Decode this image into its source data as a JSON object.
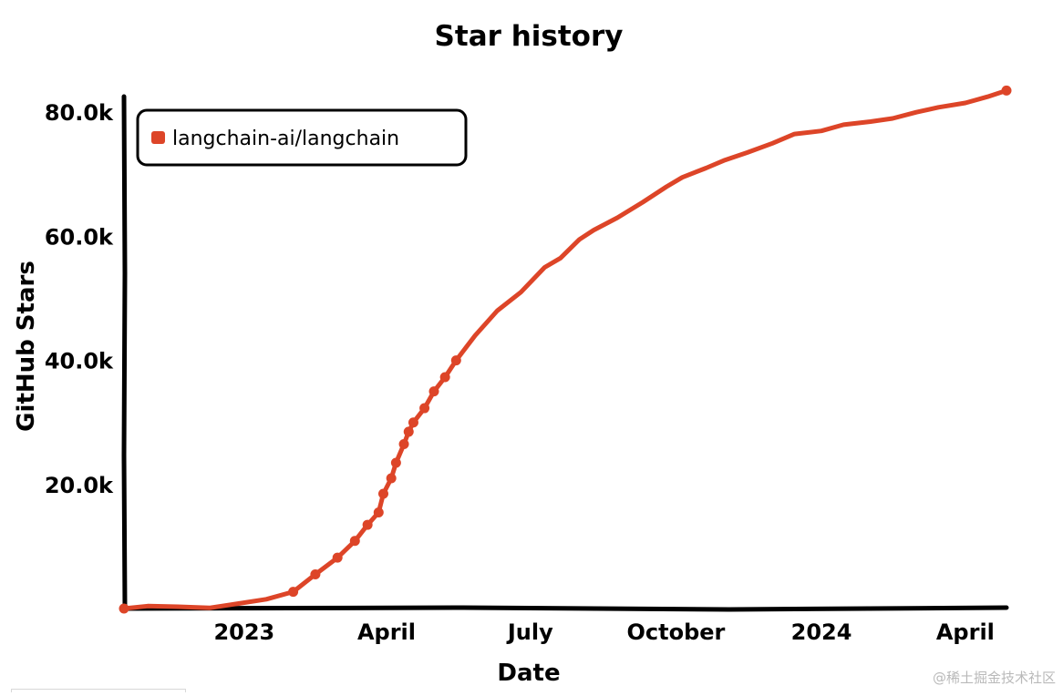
{
  "chart_data": {
    "type": "line",
    "title": "Star history",
    "xlabel": "Date",
    "ylabel": "GitHub Stars",
    "x_ticks": [
      {
        "date": "2023-01-01",
        "label": "2023"
      },
      {
        "date": "2023-04-01",
        "label": "April"
      },
      {
        "date": "2023-07-01",
        "label": "July"
      },
      {
        "date": "2023-10-01",
        "label": "October"
      },
      {
        "date": "2024-01-01",
        "label": "2024"
      },
      {
        "date": "2024-04-01",
        "label": "April"
      }
    ],
    "y_ticks": [
      {
        "value": 20000,
        "label": "20.0k"
      },
      {
        "value": 40000,
        "label": "40.0k"
      },
      {
        "value": 60000,
        "label": "60.0k"
      },
      {
        "value": 80000,
        "label": "80.0k"
      }
    ],
    "xlim": [
      "2022-10-17",
      "2024-04-27"
    ],
    "ylim": [
      0,
      84000
    ],
    "legend_position": "top-left",
    "grid": false,
    "series": [
      {
        "name": "langchain-ai/langchain",
        "color": "#dd4528",
        "x": [
          "2022-10-17",
          "2022-11-01",
          "2022-11-20",
          "2022-12-10",
          "2022-12-28",
          "2023-01-15",
          "2023-02-01",
          "2023-02-15",
          "2023-03-01",
          "2023-03-12",
          "2023-03-20",
          "2023-03-27",
          "2023-03-30",
          "2023-04-04",
          "2023-04-07",
          "2023-04-12",
          "2023-04-15",
          "2023-04-18",
          "2023-04-25",
          "2023-05-01",
          "2023-05-08",
          "2023-05-15",
          "2023-05-27",
          "2023-06-10",
          "2023-06-25",
          "2023-07-10",
          "2023-07-20",
          "2023-08-01",
          "2023-08-10",
          "2023-08-25",
          "2023-09-10",
          "2023-09-25",
          "2023-10-05",
          "2023-10-20",
          "2023-11-01",
          "2023-11-15",
          "2023-12-01",
          "2023-12-15",
          "2024-01-01",
          "2024-01-15",
          "2024-02-01",
          "2024-02-15",
          "2024-03-01",
          "2024-03-15",
          "2024-04-01",
          "2024-04-15",
          "2024-04-27"
        ],
        "values": [
          0,
          400,
          300,
          100,
          800,
          1500,
          2700,
          5500,
          8200,
          10900,
          13500,
          15500,
          18500,
          21000,
          23500,
          26500,
          28500,
          30000,
          32300,
          35000,
          37300,
          40000,
          44000,
          48000,
          51000,
          55000,
          56500,
          59500,
          61000,
          63000,
          65500,
          68000,
          69500,
          71000,
          72300,
          73500,
          75000,
          76500,
          77000,
          78000,
          78500,
          79000,
          80000,
          80800,
          81500,
          82500,
          83500
        ],
        "markers": [
          "2022-10-17",
          "2023-02-01",
          "2023-02-15",
          "2023-03-01",
          "2023-03-12",
          "2023-03-20",
          "2023-03-27",
          "2023-03-30",
          "2023-04-04",
          "2023-04-07",
          "2023-04-12",
          "2023-04-15",
          "2023-04-18",
          "2023-04-25",
          "2023-05-01",
          "2023-05-08",
          "2023-05-15",
          "2024-04-27"
        ]
      }
    ]
  },
  "watermark": "@稀土掘金技术社区"
}
